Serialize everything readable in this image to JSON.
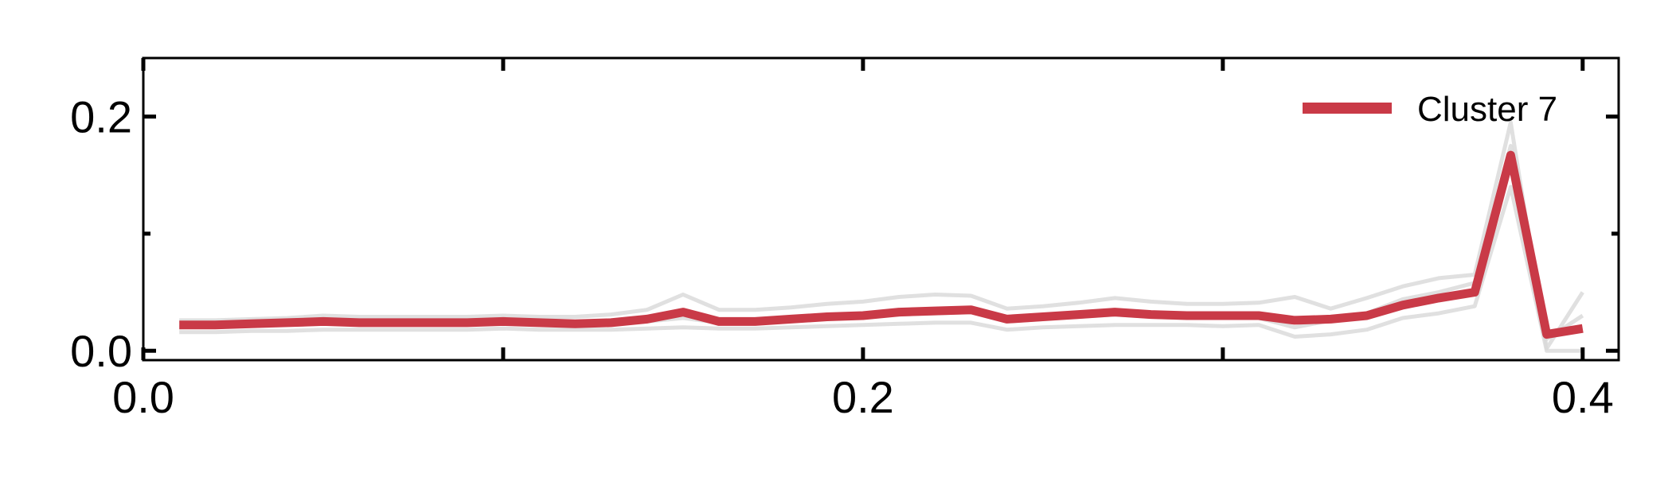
{
  "chart_data": {
    "type": "line",
    "title": "",
    "xlabel": "",
    "ylabel": "",
    "xlim": [
      0.0,
      0.41
    ],
    "ylim": [
      -0.008,
      0.25
    ],
    "x_ticks": [
      {
        "value": 0.0,
        "label": "0.0"
      },
      {
        "value": 0.2,
        "label": "0.2"
      },
      {
        "value": 0.4,
        "label": "0.4"
      }
    ],
    "x_minor_ticks": [
      0.1,
      0.3
    ],
    "y_ticks": [
      {
        "value": 0.0,
        "label": "0.0"
      },
      {
        "value": 0.2,
        "label": "0.2"
      }
    ],
    "y_minor_ticks": [
      0.1
    ],
    "grid": false,
    "legend": {
      "position": "top-right",
      "entries": [
        "Cluster 7"
      ]
    },
    "x": [
      0.01,
      0.02,
      0.03,
      0.04,
      0.05,
      0.06,
      0.07,
      0.08,
      0.09,
      0.1,
      0.11,
      0.12,
      0.13,
      0.14,
      0.15,
      0.16,
      0.17,
      0.18,
      0.19,
      0.2,
      0.21,
      0.22,
      0.23,
      0.24,
      0.25,
      0.26,
      0.27,
      0.28,
      0.29,
      0.3,
      0.31,
      0.32,
      0.33,
      0.34,
      0.35,
      0.36,
      0.37,
      0.38,
      0.39,
      0.4
    ],
    "series": [
      {
        "name": "Cluster 7",
        "color": "#c93a47",
        "values": [
          0.022,
          0.022,
          0.023,
          0.024,
          0.025,
          0.024,
          0.024,
          0.024,
          0.024,
          0.025,
          0.024,
          0.023,
          0.024,
          0.027,
          0.033,
          0.025,
          0.025,
          0.027,
          0.029,
          0.03,
          0.033,
          0.034,
          0.035,
          0.027,
          0.029,
          0.031,
          0.033,
          0.031,
          0.03,
          0.03,
          0.03,
          0.026,
          0.027,
          0.03,
          0.039,
          0.045,
          0.05,
          0.167,
          0.014,
          0.019
        ]
      },
      {
        "color": "#d8d8d8",
        "values": [
          0.026,
          0.026,
          0.027,
          0.028,
          0.03,
          0.029,
          0.029,
          0.029,
          0.029,
          0.03,
          0.029,
          0.029,
          0.031,
          0.035,
          0.048,
          0.035,
          0.035,
          0.037,
          0.04,
          0.042,
          0.046,
          0.048,
          0.047,
          0.036,
          0.038,
          0.041,
          0.045,
          0.042,
          0.04,
          0.04,
          0.041,
          0.046,
          0.036,
          0.045,
          0.055,
          0.062,
          0.065,
          0.195,
          0.002,
          0.05
        ]
      },
      {
        "color": "#d8d8d8",
        "values": [
          0.016,
          0.016,
          0.017,
          0.017,
          0.018,
          0.018,
          0.018,
          0.018,
          0.018,
          0.019,
          0.018,
          0.018,
          0.018,
          0.019,
          0.02,
          0.019,
          0.019,
          0.02,
          0.021,
          0.022,
          0.023,
          0.024,
          0.024,
          0.018,
          0.02,
          0.021,
          0.022,
          0.022,
          0.022,
          0.021,
          0.022,
          0.012,
          0.014,
          0.018,
          0.028,
          0.032,
          0.038,
          0.14,
          0.0,
          0.0
        ]
      },
      {
        "color": "#d8d8d8",
        "values": [
          0.02,
          0.021,
          0.022,
          0.023,
          0.024,
          0.022,
          0.023,
          0.023,
          0.023,
          0.024,
          0.023,
          0.022,
          0.023,
          0.025,
          0.028,
          0.024,
          0.024,
          0.026,
          0.028,
          0.029,
          0.031,
          0.032,
          0.033,
          0.025,
          0.027,
          0.029,
          0.031,
          0.029,
          0.028,
          0.029,
          0.028,
          0.02,
          0.026,
          0.032,
          0.044,
          0.05,
          0.058,
          0.175,
          0.01,
          0.03
        ]
      }
    ]
  }
}
